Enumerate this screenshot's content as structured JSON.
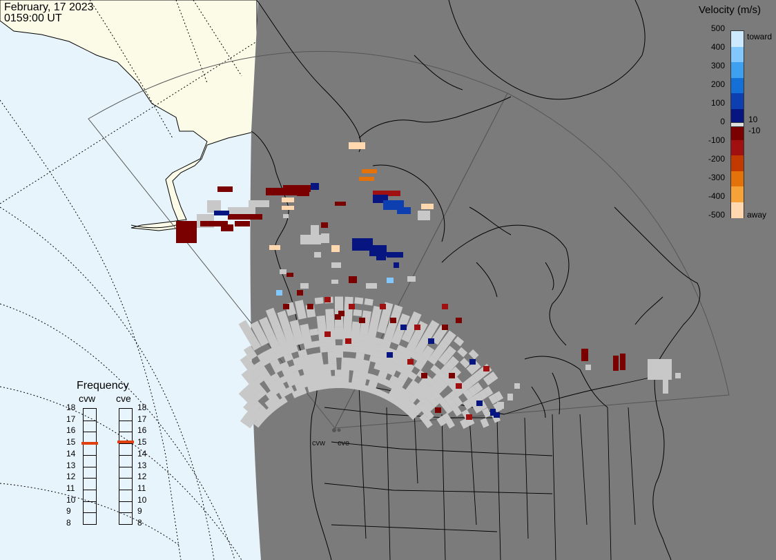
{
  "header": {
    "date": "February, 17 2023",
    "time": "0159:00 UT"
  },
  "velocity_legend": {
    "title": "Velocity (m/s)",
    "ticks": [
      "500",
      "400",
      "300",
      "200",
      "100",
      "0",
      "-100",
      "-200",
      "-300",
      "-400",
      "-500"
    ],
    "threshold_pos": "10",
    "threshold_neg": "-10",
    "toward_label": "toward",
    "away_label": "away",
    "colors": [
      "#cde9ff",
      "#82c8ff",
      "#3fa0f0",
      "#1470d6",
      "#0d3fb0",
      "#06157f",
      "#7a0000",
      "#a01010",
      "#c33a00",
      "#e4720a",
      "#f7a238",
      "#ffd8b0"
    ]
  },
  "frequency_panel": {
    "title": "Frequency",
    "radars": [
      "cvw",
      "cve"
    ],
    "scale": [
      "18",
      "17",
      "16",
      "15",
      "14",
      "13",
      "12",
      "11",
      "10",
      "9",
      "8"
    ],
    "cvw_freq_mhz": 15,
    "cve_freq_mhz": 15.1,
    "marker_color": "#e04010"
  },
  "sites": {
    "cvw_label": "cvw",
    "cve_label": "cve"
  },
  "map_colors": {
    "ocean": "#e8f4fb",
    "land_sun": "#fbfbe8",
    "night": "#7b7b7b",
    "ground_scatter": "#c8c8c8"
  }
}
